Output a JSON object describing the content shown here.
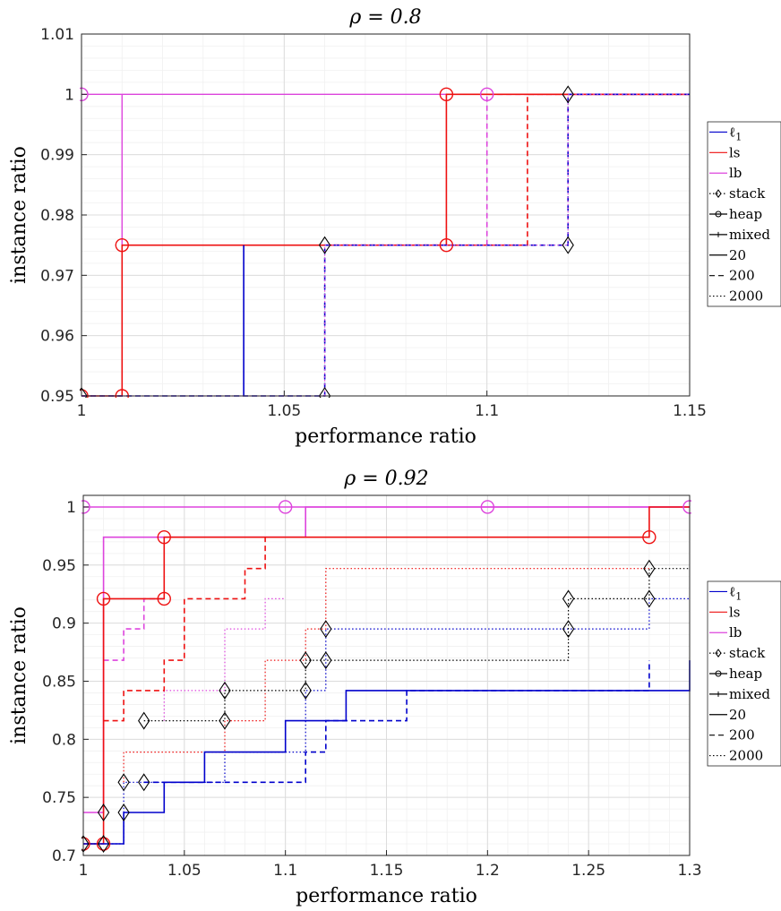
{
  "chart_data": [
    {
      "type": "line",
      "title": "ρ = 0.8",
      "xlabel": "performance ratio",
      "ylabel": "instance ratio",
      "xlim": [
        1,
        1.15
      ],
      "ylim": [
        0.95,
        1.01
      ],
      "xticks": [
        1,
        1.05,
        1.1,
        1.15
      ],
      "xtick_labels": [
        "1",
        "1.05",
        "1.1",
        "1.15"
      ],
      "yticks": [
        0.95,
        0.96,
        0.97,
        0.98,
        0.99,
        1,
        1.01
      ],
      "ytick_labels": [
        "0.95",
        "0.96",
        "0.97",
        "0.98",
        "0.99",
        "1",
        "1.01"
      ],
      "grid": true,
      "legend_position": "outside-right",
      "legend": [
        {
          "label": "ℓ1",
          "color": "#0000cc",
          "dash": "solid",
          "marker": "none"
        },
        {
          "label": "ls",
          "color": "#ee1111",
          "dash": "solid",
          "marker": "none"
        },
        {
          "label": "lb",
          "color": "#dd44dd",
          "dash": "solid",
          "marker": "none"
        },
        {
          "label": "stack",
          "color": "#000000",
          "dash": "dotted",
          "marker": "diamond"
        },
        {
          "label": "heap",
          "color": "#000000",
          "dash": "solid",
          "marker": "circle"
        },
        {
          "label": "mixed",
          "color": "#000000",
          "dash": "solid",
          "marker": "plus"
        },
        {
          "label": "20",
          "color": "#000000",
          "dash": "solid",
          "marker": "none"
        },
        {
          "label": "200",
          "color": "#000000",
          "dash": "dashed",
          "marker": "none"
        },
        {
          "label": "2000",
          "color": "#000000",
          "dash": "dotted",
          "marker": "none"
        }
      ],
      "series": [
        {
          "color": "#dd44dd",
          "dash": "solid",
          "marker": "circle",
          "x": [
            1,
            1.01,
            1.15
          ],
          "y": [
            1,
            0.975,
            1
          ],
          "mode": "lb-step"
        },
        {
          "color": "#dd44dd",
          "dash": "dashed",
          "marker": "circle",
          "x": [
            1.1,
            1.1,
            1.15
          ],
          "y": [
            0.975,
            1,
            1
          ]
        },
        {
          "color": "#ee1111",
          "dash": "solid",
          "marker": "circle",
          "x": [
            1,
            1.01,
            1.01,
            1.09,
            1.09,
            1.15
          ],
          "y": [
            0.95,
            0.95,
            0.975,
            0.975,
            1,
            1
          ]
        },
        {
          "color": "#ee1111",
          "dash": "dashed",
          "marker": "none",
          "x": [
            1.09,
            1.11,
            1.11,
            1.15
          ],
          "y": [
            0.975,
            0.975,
            1,
            1
          ]
        },
        {
          "color": "#0000cc",
          "dash": "solid",
          "marker": "none",
          "x": [
            1.04,
            1.04
          ],
          "y": [
            0.95,
            0.975
          ]
        },
        {
          "color": "#0000cc",
          "dash": "dashed",
          "marker": "none",
          "x": [
            1,
            1.06,
            1.06,
            1.12,
            1.12,
            1.15
          ],
          "y": [
            0.95,
            0.95,
            0.975,
            0.975,
            1,
            1
          ]
        },
        {
          "color": "#dd44dd",
          "dash": "dotted",
          "marker": "diamond",
          "x": [
            1,
            1.06,
            1.06,
            1.12,
            1.12,
            1.15
          ],
          "y": [
            0.95,
            0.95,
            0.975,
            0.975,
            1,
            1
          ]
        }
      ],
      "markers": [
        {
          "shape": "circle",
          "color": "#dd44dd",
          "x": 1,
          "y": 1
        },
        {
          "shape": "circle",
          "color": "#dd44dd",
          "x": 1.1,
          "y": 1
        },
        {
          "shape": "circle",
          "color": "#ee1111",
          "x": 1.09,
          "y": 1
        },
        {
          "shape": "circle",
          "color": "#ee1111",
          "x": 1.01,
          "y": 0.975
        },
        {
          "shape": "circle",
          "color": "#ee1111",
          "x": 1.09,
          "y": 0.975
        },
        {
          "shape": "circle",
          "color": "#ee1111",
          "x": 1.01,
          "y": 0.95
        },
        {
          "shape": "circle",
          "color": "#ee1111",
          "x": 1,
          "y": 0.95
        },
        {
          "shape": "diamond",
          "color": "#000000",
          "x": 1,
          "y": 0.95
        },
        {
          "shape": "diamond",
          "color": "#000000",
          "x": 1.06,
          "y": 0.95
        },
        {
          "shape": "diamond",
          "color": "#000000",
          "x": 1.06,
          "y": 0.975
        },
        {
          "shape": "diamond",
          "color": "#000000",
          "x": 1.12,
          "y": 0.975
        },
        {
          "shape": "diamond",
          "color": "#000000",
          "x": 1.12,
          "y": 1
        }
      ]
    },
    {
      "type": "line",
      "title": "ρ = 0.92",
      "xlabel": "performance ratio",
      "ylabel": "instance ratio",
      "xlim": [
        1,
        1.3
      ],
      "ylim": [
        0.7,
        1.01
      ],
      "xticks": [
        1,
        1.05,
        1.1,
        1.15,
        1.2,
        1.25,
        1.3
      ],
      "xtick_labels": [
        "1",
        "1.05",
        "1.1",
        "1.15",
        "1.2",
        "1.25",
        "1.3"
      ],
      "yticks": [
        0.7,
        0.75,
        0.8,
        0.85,
        0.9,
        0.95,
        1
      ],
      "ytick_labels": [
        "0.7",
        "0.75",
        "0.8",
        "0.85",
        "0.9",
        "0.95",
        "1"
      ],
      "grid": true,
      "legend_position": "outside-right",
      "legend": [
        {
          "label": "ℓ1",
          "color": "#0000cc",
          "dash": "solid",
          "marker": "none"
        },
        {
          "label": "ls",
          "color": "#ee1111",
          "dash": "solid",
          "marker": "none"
        },
        {
          "label": "lb",
          "color": "#dd44dd",
          "dash": "solid",
          "marker": "none"
        },
        {
          "label": "stack",
          "color": "#000000",
          "dash": "dotted",
          "marker": "diamond"
        },
        {
          "label": "heap",
          "color": "#000000",
          "dash": "solid",
          "marker": "circle"
        },
        {
          "label": "mixed",
          "color": "#000000",
          "dash": "solid",
          "marker": "plus"
        },
        {
          "label": "20",
          "color": "#000000",
          "dash": "solid",
          "marker": "none"
        },
        {
          "label": "200",
          "color": "#000000",
          "dash": "dashed",
          "marker": "none"
        },
        {
          "label": "2000",
          "color": "#000000",
          "dash": "dotted",
          "marker": "none"
        }
      ],
      "series": [
        {
          "color": "#dd44dd",
          "dash": "solid",
          "marker": "circle",
          "x": [
            1,
            1.01,
            1.01,
            1.11,
            1.11,
            1.3
          ],
          "y": [
            0.737,
            0.737,
            0.974,
            0.974,
            1,
            1
          ]
        },
        {
          "color": "#dd44dd",
          "dash": "solid",
          "marker": "none",
          "x": [
            1,
            1.3
          ],
          "y": [
            1,
            1
          ]
        },
        {
          "color": "#dd44dd",
          "dash": "dashed",
          "marker": "none",
          "x": [
            1.01,
            1.02,
            1.02,
            1.03,
            1.03,
            1.04
          ],
          "y": [
            0.868,
            0.868,
            0.895,
            0.895,
            0.921,
            0.921
          ]
        },
        {
          "color": "#dd44dd",
          "dash": "dotted",
          "marker": "none",
          "x": [
            1.04,
            1.04,
            1.07,
            1.07,
            1.09,
            1.09,
            1.1
          ],
          "y": [
            0.816,
            0.842,
            0.842,
            0.895,
            0.895,
            0.921,
            0.921
          ]
        },
        {
          "color": "#ee1111",
          "dash": "solid",
          "marker": "circle",
          "x": [
            1,
            1.01,
            1.01,
            1.04,
            1.04,
            1.28,
            1.28,
            1.3
          ],
          "y": [
            0.71,
            0.71,
            0.921,
            0.921,
            0.974,
            0.974,
            1,
            1
          ]
        },
        {
          "color": "#ee1111",
          "dash": "dashed",
          "marker": "none",
          "x": [
            1.01,
            1.02,
            1.02,
            1.04,
            1.04,
            1.05,
            1.05,
            1.08,
            1.08,
            1.09,
            1.09
          ],
          "y": [
            0.816,
            0.816,
            0.842,
            0.842,
            0.868,
            0.868,
            0.921,
            0.921,
            0.947,
            0.947,
            0.974
          ]
        },
        {
          "color": "#ee1111",
          "dash": "dotted",
          "marker": "none",
          "x": [
            1.02,
            1.02,
            1.07,
            1.07,
            1.09,
            1.09,
            1.11,
            1.11,
            1.12,
            1.12,
            1.28
          ],
          "y": [
            0.763,
            0.789,
            0.789,
            0.816,
            0.816,
            0.868,
            0.868,
            0.895,
            0.895,
            0.947,
            0.947
          ]
        },
        {
          "color": "#0000cc",
          "dash": "solid",
          "marker": "none",
          "x": [
            1,
            1.02,
            1.02,
            1.04,
            1.04,
            1.06,
            1.06,
            1.1,
            1.1,
            1.13,
            1.13,
            1.3,
            1.3
          ],
          "y": [
            0.71,
            0.71,
            0.737,
            0.737,
            0.763,
            0.763,
            0.789,
            0.789,
            0.816,
            0.816,
            0.842,
            0.842,
            0.868
          ]
        },
        {
          "color": "#0000cc",
          "dash": "dashed",
          "marker": "none",
          "x": [
            1.03,
            1.11,
            1.11,
            1.12,
            1.12,
            1.16,
            1.16,
            1.28,
            1.28
          ],
          "y": [
            0.763,
            0.763,
            0.789,
            0.789,
            0.816,
            0.816,
            0.842,
            0.842,
            0.868
          ]
        },
        {
          "color": "#0000cc",
          "dash": "dotted",
          "marker": "diamond",
          "x": [
            1,
            1.02,
            1.02,
            1.07,
            1.07,
            1.11,
            1.11,
            1.12,
            1.12,
            1.28,
            1.28,
            1.3
          ],
          "y": [
            0.71,
            0.71,
            0.763,
            0.763,
            0.789,
            0.789,
            0.842,
            0.842,
            0.895,
            0.895,
            0.921,
            0.921
          ]
        },
        {
          "color": "#000000",
          "dash": "dotted",
          "marker": "diamond",
          "x": [
            1.03,
            1.07,
            1.07,
            1.11,
            1.11,
            1.24,
            1.24,
            1.28,
            1.28,
            1.3
          ],
          "y": [
            0.816,
            0.816,
            0.842,
            0.842,
            0.868,
            0.868,
            0.921,
            0.921,
            0.947,
            0.947
          ]
        }
      ],
      "markers": [
        {
          "shape": "circle",
          "color": "#dd44dd",
          "x": 1,
          "y": 1
        },
        {
          "shape": "circle",
          "color": "#dd44dd",
          "x": 1.1,
          "y": 1
        },
        {
          "shape": "circle",
          "color": "#dd44dd",
          "x": 1.2,
          "y": 1
        },
        {
          "shape": "circle",
          "color": "#dd44dd",
          "x": 1.3,
          "y": 1
        },
        {
          "shape": "circle",
          "color": "#ee1111",
          "x": 1.04,
          "y": 0.974
        },
        {
          "shape": "circle",
          "color": "#ee1111",
          "x": 1.28,
          "y": 0.974
        },
        {
          "shape": "circle",
          "color": "#ee1111",
          "x": 1.01,
          "y": 0.921
        },
        {
          "shape": "circle",
          "color": "#ee1111",
          "x": 1.04,
          "y": 0.921
        },
        {
          "shape": "circle",
          "color": "#ee1111",
          "x": 1,
          "y": 0.71
        },
        {
          "shape": "circle",
          "color": "#ee1111",
          "x": 1.01,
          "y": 0.71
        },
        {
          "shape": "diamond",
          "color": "#000000",
          "x": 1,
          "y": 0.71
        },
        {
          "shape": "diamond",
          "color": "#000000",
          "x": 1.01,
          "y": 0.71
        },
        {
          "shape": "diamond",
          "color": "#000000",
          "x": 1.01,
          "y": 0.737
        },
        {
          "shape": "diamond",
          "color": "#000000",
          "x": 1.02,
          "y": 0.737
        },
        {
          "shape": "diamond",
          "color": "#000000",
          "x": 1.02,
          "y": 0.763
        },
        {
          "shape": "diamond",
          "color": "#000000",
          "x": 1.03,
          "y": 0.763
        },
        {
          "shape": "diamond",
          "color": "#000000",
          "x": 1.03,
          "y": 0.816
        },
        {
          "shape": "diamond",
          "color": "#000000",
          "x": 1.07,
          "y": 0.816
        },
        {
          "shape": "diamond",
          "color": "#000000",
          "x": 1.07,
          "y": 0.842
        },
        {
          "shape": "diamond",
          "color": "#000000",
          "x": 1.11,
          "y": 0.842
        },
        {
          "shape": "diamond",
          "color": "#000000",
          "x": 1.11,
          "y": 0.868
        },
        {
          "shape": "diamond",
          "color": "#000000",
          "x": 1.12,
          "y": 0.868
        },
        {
          "shape": "diamond",
          "color": "#000000",
          "x": 1.12,
          "y": 0.895
        },
        {
          "shape": "diamond",
          "color": "#000000",
          "x": 1.24,
          "y": 0.895
        },
        {
          "shape": "diamond",
          "color": "#000000",
          "x": 1.24,
          "y": 0.921
        },
        {
          "shape": "diamond",
          "color": "#000000",
          "x": 1.28,
          "y": 0.921
        },
        {
          "shape": "diamond",
          "color": "#000000",
          "x": 1.28,
          "y": 0.947
        }
      ]
    }
  ]
}
